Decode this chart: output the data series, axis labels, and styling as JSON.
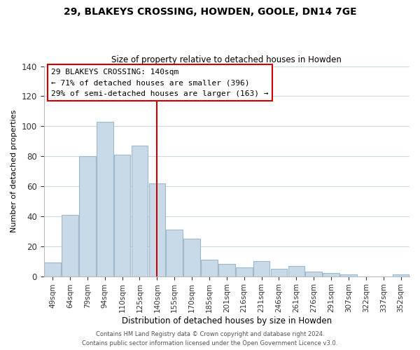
{
  "title1": "29, BLAKEYS CROSSING, HOWDEN, GOOLE, DN14 7GE",
  "title2": "Size of property relative to detached houses in Howden",
  "xlabel": "Distribution of detached houses by size in Howden",
  "ylabel": "Number of detached properties",
  "bar_labels": [
    "49sqm",
    "64sqm",
    "79sqm",
    "94sqm",
    "110sqm",
    "125sqm",
    "140sqm",
    "155sqm",
    "170sqm",
    "185sqm",
    "201sqm",
    "216sqm",
    "231sqm",
    "246sqm",
    "261sqm",
    "276sqm",
    "291sqm",
    "307sqm",
    "322sqm",
    "337sqm",
    "352sqm"
  ],
  "bar_values": [
    9,
    41,
    80,
    103,
    81,
    87,
    62,
    31,
    25,
    11,
    8,
    6,
    10,
    5,
    7,
    3,
    2,
    1,
    0,
    0,
    1
  ],
  "bar_color": "#c8d9e8",
  "bar_edge_color": "#a0b8cc",
  "highlight_index": 6,
  "vline_color": "#cc0000",
  "annotation_title": "29 BLAKEYS CROSSING: 140sqm",
  "annotation_line1": "← 71% of detached houses are smaller (396)",
  "annotation_line2": "29% of semi-detached houses are larger (163) →",
  "annotation_box_color": "#ffffff",
  "annotation_box_edge": "#cc0000",
  "ylim": [
    0,
    140
  ],
  "footer1": "Contains HM Land Registry data © Crown copyright and database right 2024.",
  "footer2": "Contains public sector information licensed under the Open Government Licence v3.0."
}
